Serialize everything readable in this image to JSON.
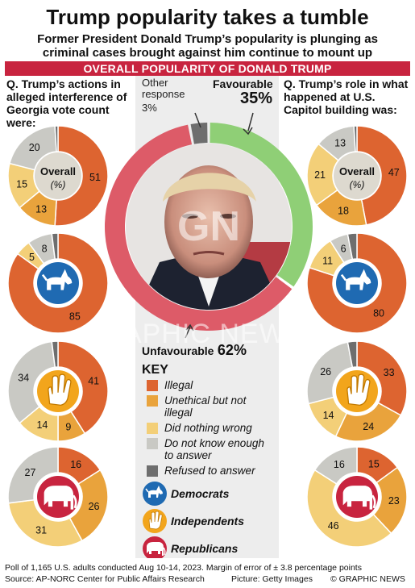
{
  "header": {
    "title": "Trump popularity takes a tumble",
    "subtitle": "Former President Donald Trump’s popularity is plunging as criminal cases brought against him continue to mount up",
    "banner": "OVERALL POPULARITY OF DONALD TRUMP"
  },
  "questions": {
    "left": "Q. Trump’s actions in alleged interference of Georgia vote count were:",
    "right": "Q. Trump’s role in what happened at U.S. Capitol building was:"
  },
  "overall_label": "Overall",
  "overall_unit": "(%)",
  "center": {
    "other_label": "Other response",
    "other_value": "3%",
    "fav_label": "Favourable",
    "fav_value": "35%",
    "unfav_label": "Unfavourable",
    "unfav_value": "62%"
  },
  "key": {
    "title": "KEY",
    "items": [
      "Illegal",
      "Unethical but not illegal",
      "Did nothing wrong",
      "Do not know enough to answer",
      "Refused to answer"
    ],
    "parties": [
      "Democrats",
      "Independents",
      "Republicans"
    ]
  },
  "colors": {
    "illegal": "#dd6430",
    "unethical": "#e9a33c",
    "nothing_wrong": "#f3cf78",
    "dont_know": "#c9c9c4",
    "refused": "#6e6e6e",
    "favourable": "#8fcf76",
    "unfavourable": "#dd5b68",
    "other": "#6e6e6e",
    "democrats": "#1f6ab2",
    "independents": "#f2a51c",
    "republicans": "#c8243f",
    "banner": "#c8243f"
  },
  "footer": {
    "note": "Poll of 1,165 U.S. adults conducted Aug 10-14, 2023. Margin of error of ± 3.8 percentage points",
    "source": "Source: AP-NORC Center for Public Affairs Research",
    "picture": "Picture: Getty Images",
    "credit": "© GRAPHIC NEWS"
  },
  "watermark": "GRAPHIC NEWS",
  "chart_data": [
    {
      "type": "pie",
      "title": "OVERALL POPULARITY OF DONALD TRUMP",
      "categories": [
        "Favourable",
        "Unfavourable",
        "Other response"
      ],
      "values": [
        35,
        62,
        3
      ]
    },
    {
      "type": "pie",
      "title": "Q. Trump’s actions in alleged interference of Georgia vote count were:",
      "categories": [
        "Illegal",
        "Unethical but not illegal",
        "Did nothing wrong",
        "Do not know enough to answer",
        "Refused to answer"
      ],
      "series": [
        {
          "name": "Overall",
          "values": [
            51,
            13,
            15,
            20,
            1
          ]
        },
        {
          "name": "Democrats",
          "values": [
            85,
            0,
            5,
            8,
            2
          ]
        },
        {
          "name": "Independents",
          "values": [
            41,
            9,
            14,
            34,
            2
          ]
        },
        {
          "name": "Republicans",
          "values": [
            16,
            26,
            31,
            27,
            0
          ]
        }
      ]
    },
    {
      "type": "pie",
      "title": "Q. Trump’s role in what happened at U.S. Capitol building was:",
      "categories": [
        "Illegal",
        "Unethical but not illegal",
        "Did nothing wrong",
        "Do not know enough to answer",
        "Refused to answer"
      ],
      "series": [
        {
          "name": "Overall",
          "values": [
            47,
            18,
            21,
            13,
            1
          ]
        },
        {
          "name": "Democrats",
          "values": [
            80,
            0,
            11,
            6,
            3
          ]
        },
        {
          "name": "Independents",
          "values": [
            33,
            24,
            14,
            26,
            3
          ]
        },
        {
          "name": "Republicans",
          "values": [
            15,
            23,
            46,
            16,
            0
          ]
        }
      ]
    }
  ]
}
